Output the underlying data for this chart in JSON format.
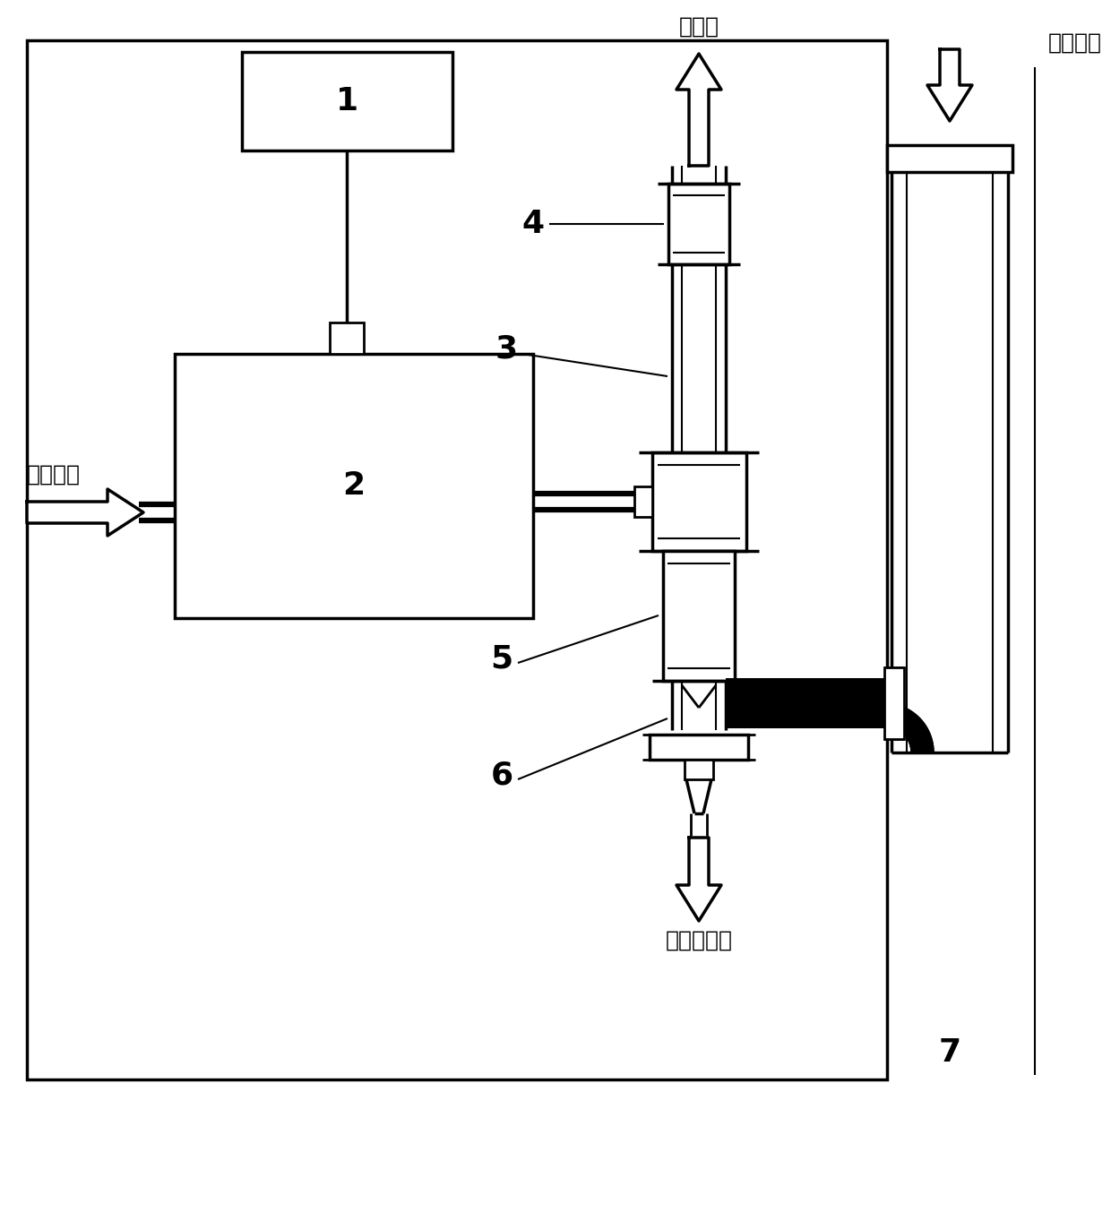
{
  "bg_color": "#ffffff",
  "figsize": [
    12.4,
    13.63
  ],
  "dpi": 100,
  "labels": {
    "hot_flow": "热气流",
    "compressed_left": "压缩空气",
    "compressed_right": "压缩空气",
    "target_out": "目标出气口",
    "num1": "1",
    "num2": "2",
    "num3": "3",
    "num4": "4",
    "num5": "5",
    "num6": "6",
    "num7": "7"
  },
  "fontsize_chinese": 18,
  "fontsize_num": 26
}
